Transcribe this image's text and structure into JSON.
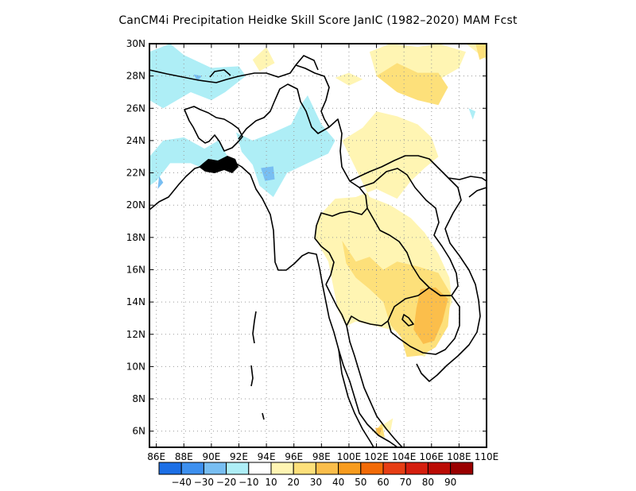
{
  "title": "CanCM4i  Precipitation Heidke Skill Score JanIC (1982–2020) MAM Fcst",
  "map": {
    "lon_range": [
      85.5,
      110
    ],
    "lat_range": [
      5,
      30
    ],
    "lat_labels": [
      {
        "lat": 30,
        "text": "30N"
      },
      {
        "lat": 28,
        "text": "28N"
      },
      {
        "lat": 26,
        "text": "26N"
      },
      {
        "lat": 24,
        "text": "24N"
      },
      {
        "lat": 22,
        "text": "22N"
      },
      {
        "lat": 20,
        "text": "20N"
      },
      {
        "lat": 18,
        "text": "18N"
      },
      {
        "lat": 16,
        "text": "16N"
      },
      {
        "lat": 14,
        "text": "14N"
      },
      {
        "lat": 12,
        "text": "12N"
      },
      {
        "lat": 10,
        "text": "10N"
      },
      {
        "lat": 8,
        "text": "8N"
      },
      {
        "lat": 6,
        "text": "6N"
      }
    ],
    "lon_labels": [
      {
        "lon": 86,
        "text": "86E"
      },
      {
        "lon": 88,
        "text": "88E"
      },
      {
        "lon": 90,
        "text": "90E"
      },
      {
        "lon": 92,
        "text": "92E"
      },
      {
        "lon": 94,
        "text": "94E"
      },
      {
        "lon": 96,
        "text": "96E"
      },
      {
        "lon": 98,
        "text": "98E"
      },
      {
        "lon": 100,
        "text": "100E"
      },
      {
        "lon": 102,
        "text": "102E"
      },
      {
        "lon": 104,
        "text": "104E"
      },
      {
        "lon": 106,
        "text": "106E"
      },
      {
        "lon": 108,
        "text": "108E"
      },
      {
        "lon": 110,
        "text": "110E"
      }
    ],
    "shaded_regions": [
      {
        "level": "-10 to -20 (light blue)",
        "color": "#aeeef6",
        "polygons": [
          [
            [
              85.5,
              29.5
            ],
            [
              87,
              30
            ],
            [
              88,
              29.3
            ],
            [
              90,
              28.5
            ],
            [
              92,
              28.6
            ],
            [
              92.5,
              28
            ],
            [
              91,
              27
            ],
            [
              90,
              26.5
            ],
            [
              88.5,
              27
            ],
            [
              87.5,
              26.5
            ],
            [
              86.5,
              26
            ],
            [
              85.5,
              26.5
            ]
          ],
          [
            [
              85.5,
              23
            ],
            [
              86.5,
              24
            ],
            [
              88,
              24.2
            ],
            [
              89.5,
              23.5
            ],
            [
              90.5,
              24
            ],
            [
              91.2,
              23
            ],
            [
              90.2,
              22
            ],
            [
              88.5,
              22.6
            ],
            [
              87,
              22.6
            ],
            [
              86,
              21.5
            ],
            [
              85.5,
              21.2
            ]
          ],
          [
            [
              91.8,
              24.5
            ],
            [
              93,
              24
            ],
            [
              94.5,
              24.5
            ],
            [
              95.8,
              25
            ],
            [
              96.5,
              26.2
            ],
            [
              97,
              26.8
            ],
            [
              98,
              25
            ],
            [
              99,
              24
            ],
            [
              98.5,
              23.2
            ],
            [
              97,
              22.6
            ],
            [
              95.5,
              22
            ],
            [
              94.5,
              20.5
            ],
            [
              93.5,
              21.2
            ],
            [
              93,
              22.5
            ],
            [
              92.2,
              23.3
            ]
          ],
          [
            [
              108.7,
              26
            ],
            [
              109.2,
              25.8
            ],
            [
              109,
              25.3
            ]
          ]
        ]
      },
      {
        "level": "-20 to -30 (blue)",
        "color": "#78bef2",
        "polygons": [
          [
            [
              86.2,
              21.8
            ],
            [
              86.5,
              21.4
            ],
            [
              86.1,
              21
            ]
          ],
          [
            [
              88.7,
              28.1
            ],
            [
              89.3,
              28
            ],
            [
              89,
              27.7
            ]
          ],
          [
            [
              93.6,
              22.3
            ],
            [
              94.5,
              22.4
            ],
            [
              94.6,
              21.6
            ],
            [
              93.9,
              21.5
            ]
          ],
          [
            [
              101.2,
              24.3
            ],
            [
              101.5,
              24.1
            ],
            [
              101.3,
              23.8
            ]
          ]
        ]
      },
      {
        "level": "10 to 20 (pale yellow)",
        "color": "#fff5b3",
        "polygons": [
          [
            [
              93,
              29
            ],
            [
              94,
              29.8
            ],
            [
              94.6,
              28.8
            ],
            [
              93.5,
              28.3
            ]
          ],
          [
            [
              99,
              27.9
            ],
            [
              100,
              28.2
            ],
            [
              101,
              27.8
            ],
            [
              100,
              27.4
            ]
          ],
          [
            [
              101.5,
              29.5
            ],
            [
              103,
              30
            ],
            [
              105,
              29.8
            ],
            [
              106.5,
              30
            ],
            [
              108.5,
              29.5
            ],
            [
              108,
              28.5
            ],
            [
              107,
              28
            ],
            [
              106,
              27.5
            ],
            [
              104.5,
              27.8
            ],
            [
              103,
              27.5
            ],
            [
              102,
              28
            ]
          ],
          [
            [
              99.5,
              24
            ],
            [
              101,
              24.8
            ],
            [
              102,
              25.8
            ],
            [
              103.5,
              25.5
            ],
            [
              105,
              25
            ],
            [
              106,
              24.2
            ],
            [
              106.5,
              23
            ],
            [
              105.5,
              22.3
            ],
            [
              104.5,
              21.5
            ],
            [
              103.5,
              20.4
            ],
            [
              102,
              21
            ],
            [
              100.5,
              20.5
            ],
            [
              99,
              20.4
            ],
            [
              97.8,
              19.3
            ],
            [
              97.5,
              18
            ],
            [
              98.5,
              16.5
            ],
            [
              98.8,
              15.2
            ],
            [
              99.2,
              13.5
            ],
            [
              99.8,
              12.5
            ],
            [
              100.5,
              12.8
            ],
            [
              102,
              12.5
            ],
            [
              103.5,
              12.2
            ],
            [
              104.5,
              11
            ],
            [
              105.5,
              10.6
            ],
            [
              106.5,
              12
            ],
            [
              107.5,
              14
            ],
            [
              107.3,
              15.5
            ],
            [
              106.5,
              17
            ],
            [
              105.5,
              18.3
            ],
            [
              104.5,
              19.2
            ],
            [
              103,
              20
            ],
            [
              101.5,
              20.5
            ]
          ],
          [
            [
              102.3,
              6.3
            ],
            [
              103.2,
              6.8
            ],
            [
              103,
              5.9
            ]
          ],
          [
            [
              108.5,
              30
            ],
            [
              110,
              30
            ],
            [
              110,
              29
            ]
          ]
        ]
      },
      {
        "level": "20 to 30 (light orange)",
        "color": "#fde07a",
        "polygons": [
          [
            [
              102,
              28
            ],
            [
              103.5,
              28.8
            ],
            [
              105,
              28.2
            ],
            [
              106.5,
              28.2
            ],
            [
              107.2,
              27.3
            ],
            [
              106.5,
              26.2
            ],
            [
              105,
              26.5
            ],
            [
              103.5,
              27
            ]
          ],
          [
            [
              99.5,
              17.8
            ],
            [
              100.5,
              16.5
            ],
            [
              101.5,
              16.8
            ],
            [
              102.5,
              16
            ],
            [
              103.5,
              16.5
            ],
            [
              105,
              16.2
            ],
            [
              106.5,
              15.8
            ],
            [
              107.4,
              14.5
            ],
            [
              107.2,
              12.5
            ],
            [
              106.3,
              11.2
            ],
            [
              105.3,
              10.7
            ],
            [
              104.2,
              10.6
            ],
            [
              103.8,
              11.8
            ],
            [
              103,
              12.6
            ],
            [
              102.5,
              14
            ],
            [
              101.5,
              14.8
            ],
            [
              100.5,
              15.5
            ],
            [
              99.8,
              16.4
            ]
          ],
          [
            [
              101.8,
              5.9
            ],
            [
              102.4,
              6.5
            ],
            [
              102.6,
              5.6
            ]
          ],
          [
            [
              109.2,
              30
            ],
            [
              110,
              30
            ],
            [
              110,
              29.2
            ],
            [
              109.5,
              29
            ]
          ]
        ]
      },
      {
        "level": "30 to 40 (orange)",
        "color": "#fbbe4b",
        "polygons": [
          [
            [
              105.2,
              14.8
            ],
            [
              106.3,
              14.9
            ],
            [
              107.2,
              14.2
            ],
            [
              106.8,
              12.8
            ],
            [
              106.2,
              11.6
            ],
            [
              105.4,
              11.4
            ],
            [
              104.7,
              12.3
            ],
            [
              104.9,
              13.6
            ]
          ],
          [
            [
              101.9,
              6.2
            ],
            [
              102.4,
              6.2
            ],
            [
              102.2,
              5.7
            ]
          ]
        ]
      }
    ],
    "colorbar": {
      "colors": [
        "#1c6fe6",
        "#3d90ef",
        "#78bef2",
        "#aeeef6",
        "#ffffff",
        "#fff5b3",
        "#fde07a",
        "#fbbe4b",
        "#f89c1e",
        "#f26a06",
        "#e73e14",
        "#d51e0e",
        "#bb0b04",
        "#9a0000"
      ],
      "labels": [
        "-40",
        "-30",
        "-20",
        "-10",
        "10",
        "20",
        "30",
        "40",
        "50",
        "60",
        "70",
        "80",
        "90"
      ]
    }
  }
}
